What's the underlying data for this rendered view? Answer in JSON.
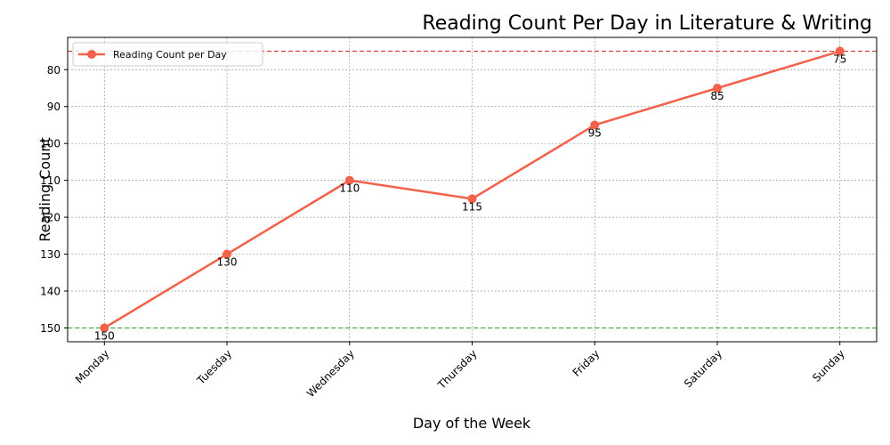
{
  "chart_data": {
    "type": "line",
    "title": "Reading Count Per Day in Literature & Writing",
    "xlabel": "Day of the Week",
    "ylabel": "Reading Count",
    "categories": [
      "Monday",
      "Tuesday",
      "Wednesday",
      "Thursday",
      "Friday",
      "Saturday",
      "Sunday"
    ],
    "series": [
      {
        "name": "Reading Count per Day",
        "values": [
          150,
          130,
          110,
          115,
          95,
          85,
          75
        ],
        "color": "#f4614a"
      }
    ],
    "y_ticks": [
      80,
      90,
      100,
      110,
      120,
      130,
      140,
      150
    ],
    "y_inverted": true,
    "ylim": [
      153.75,
      71.25
    ],
    "reference_lines": [
      {
        "value": 75,
        "color": "#d62728",
        "style": "dashed"
      },
      {
        "value": 150,
        "color": "#2ca02c",
        "style": "dashed"
      }
    ],
    "grid": true,
    "legend_position": "top-left"
  }
}
